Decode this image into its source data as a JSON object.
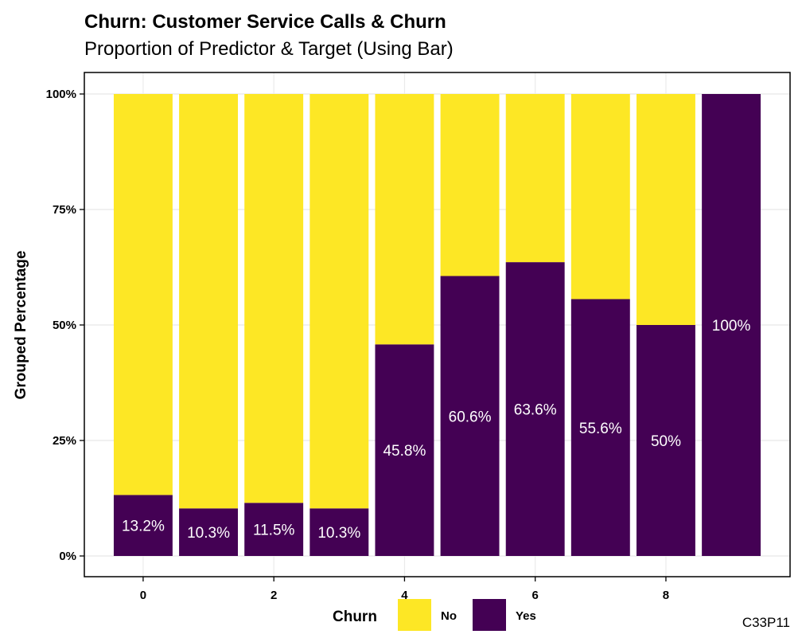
{
  "chart_data": {
    "type": "bar",
    "stacked": true,
    "title": "Churn: Customer Service Calls & Churn",
    "subtitle": "Proportion of Predictor & Target (Using Bar)",
    "ylabel": "Grouped Percentage",
    "xlabel": "",
    "caption": "C33P11",
    "x": [
      0,
      1,
      2,
      3,
      4,
      5,
      6,
      7,
      8,
      9
    ],
    "xticks": [
      0,
      2,
      4,
      6,
      8
    ],
    "xlim": [
      -0.9,
      9.9
    ],
    "ylim": [
      0,
      1
    ],
    "yticks": [
      0,
      0.25,
      0.5,
      0.75,
      1
    ],
    "ytick_labels": [
      "0%",
      "25%",
      "50%",
      "75%",
      "100%"
    ],
    "grid": true,
    "legend": {
      "title": "Churn",
      "position": "bottom",
      "entries": [
        {
          "label": "No",
          "color": "#FDE725"
        },
        {
          "label": "Yes",
          "color": "#440154"
        }
      ]
    },
    "series": [
      {
        "name": "Yes",
        "color": "#440154",
        "values": [
          0.132,
          0.103,
          0.115,
          0.103,
          0.458,
          0.606,
          0.636,
          0.556,
          0.5,
          1.0
        ]
      },
      {
        "name": "No",
        "color": "#FDE725",
        "values": [
          0.868,
          0.897,
          0.885,
          0.897,
          0.542,
          0.394,
          0.364,
          0.444,
          0.5,
          0.0
        ]
      }
    ],
    "labels": [
      "13.2%",
      "10.3%",
      "11.5%",
      "10.3%",
      "45.8%",
      "60.6%",
      "63.6%",
      "55.6%",
      "50%",
      "100%"
    ]
  }
}
